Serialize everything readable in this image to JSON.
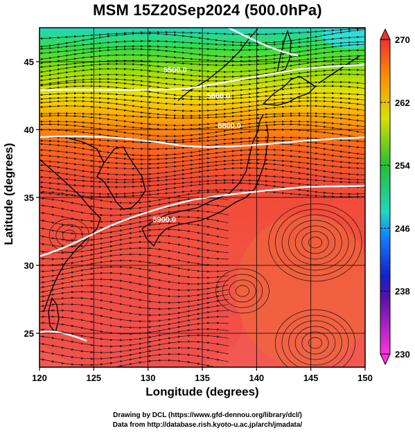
{
  "title": "MSM 15Z20Sep2024 (500.0hPa)",
  "xlabel": "Longitude (degrees)",
  "ylabel": "Latitude  (degrees)",
  "credit_line1": "Drawing by DCL (https://www.gfd-dennou.org/library/dcl/)",
  "credit_line2": "Data from http://database.rish.kyoto-u.ac.jp/arch/jmadata/",
  "chart_data": {
    "type": "heatmap",
    "x_ticks": [
      120,
      125,
      130,
      135,
      140,
      145,
      150
    ],
    "y_ticks": [
      25,
      30,
      35,
      40,
      45
    ],
    "xlim": [
      120,
      150
    ],
    "ylim": [
      22.5,
      47.5
    ],
    "colorbar": {
      "ticks": [
        230,
        238,
        246,
        254,
        262,
        270
      ],
      "range": [
        230,
        270
      ]
    },
    "contours": [
      {
        "label": "5500.0",
        "lon": 132.5,
        "lat": 44.2
      },
      {
        "label": "5600.0",
        "lon": 136.5,
        "lat": 42.3
      },
      {
        "label": "5800.0",
        "lon": 137.5,
        "lat": 40.1
      },
      {
        "label": "5900.0",
        "lon": 131.5,
        "lat": 33.2
      }
    ],
    "colors": {
      "cold": "#ff33dd",
      "cool": "#1133ee",
      "mid": "#22d6c0",
      "green": "#22c033",
      "yellow": "#d9e000",
      "orange": "#ff8c00",
      "warm": "#f04848"
    }
  }
}
